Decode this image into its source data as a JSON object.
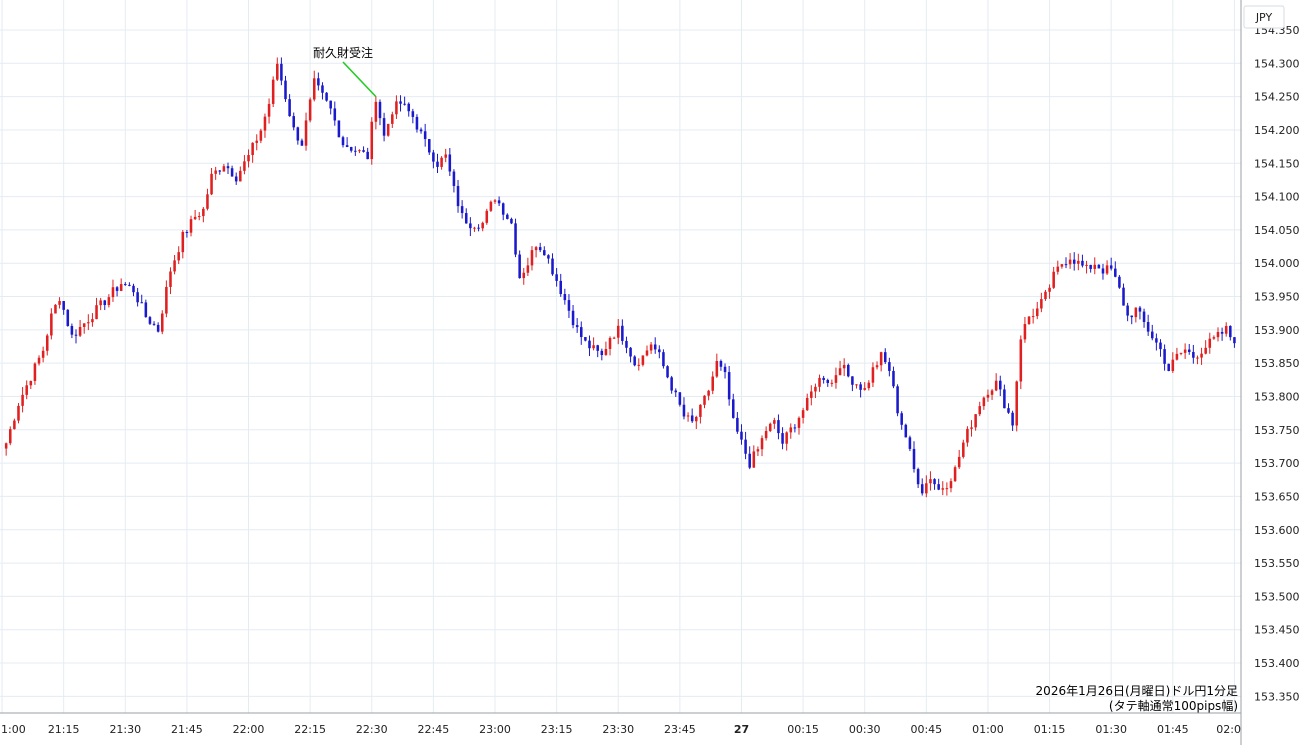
{
  "chart_data": {
    "type": "candlestick",
    "currency_label": "JPY",
    "caption_lines": [
      "2026年1月26日(月曜日)ドル円1分足",
      "(タテ軸通常100pips幅)"
    ],
    "annotation": {
      "text": "耐久財受注",
      "price": 154.25
    },
    "colors": {
      "up": "#e02020",
      "down": "#1a1acc",
      "grid": "#e4ecf3",
      "annotation_line": "#22cc22"
    },
    "ylim": [
      153.325,
      154.395
    ],
    "y_ticks": [
      154.35,
      154.3,
      154.25,
      154.2,
      154.15,
      154.1,
      154.05,
      154.0,
      153.95,
      153.9,
      153.85,
      153.8,
      153.75,
      153.7,
      153.65,
      153.6,
      153.55,
      153.5,
      153.45,
      153.4,
      153.35
    ],
    "y_tick_labels": [
      "154.350",
      "154.300",
      "154.250",
      "154.200",
      "154.150",
      "154.100",
      "154.050",
      "154.000",
      "153.950",
      "153.900",
      "153.850",
      "153.800",
      "153.750",
      "153.700",
      "153.650",
      "153.600",
      "153.550",
      "153.500",
      "153.450",
      "153.400",
      "153.350"
    ],
    "x_ticks": [
      {
        "label": "1:00",
        "minute": -1
      },
      {
        "label": "21:15",
        "minute": 14
      },
      {
        "label": "21:30",
        "minute": 29
      },
      {
        "label": "21:45",
        "minute": 44
      },
      {
        "label": "22:00",
        "minute": 59
      },
      {
        "label": "22:15",
        "minute": 74
      },
      {
        "label": "22:30",
        "minute": 89
      },
      {
        "label": "22:45",
        "minute": 104
      },
      {
        "label": "23:00",
        "minute": 119
      },
      {
        "label": "23:15",
        "minute": 134
      },
      {
        "label": "23:30",
        "minute": 149
      },
      {
        "label": "23:45",
        "minute": 164
      },
      {
        "label": "27",
        "minute": 179,
        "bold": true
      },
      {
        "label": "00:15",
        "minute": 194
      },
      {
        "label": "00:30",
        "minute": 209
      },
      {
        "label": "00:45",
        "minute": 224
      },
      {
        "label": "01:00",
        "minute": 239
      },
      {
        "label": "01:15",
        "minute": 254
      },
      {
        "label": "01:30",
        "minute": 269
      },
      {
        "label": "01:45",
        "minute": 284
      },
      {
        "label": "02:0",
        "minute": 299
      }
    ],
    "x_range_minutes": [
      -1.5,
      300.6
    ],
    "annotation_minute": 90,
    "path": [
      [
        0,
        153.73
      ],
      [
        3,
        153.79
      ],
      [
        6,
        153.83
      ],
      [
        9,
        153.87
      ],
      [
        11,
        153.92
      ],
      [
        13,
        153.95
      ],
      [
        16,
        153.89
      ],
      [
        19,
        153.91
      ],
      [
        22,
        153.93
      ],
      [
        25,
        153.95
      ],
      [
        28,
        153.97
      ],
      [
        31,
        153.96
      ],
      [
        34,
        153.92
      ],
      [
        37,
        153.9
      ],
      [
        38,
        153.93
      ],
      [
        40,
        153.99
      ],
      [
        43,
        154.04
      ],
      [
        46,
        154.07
      ],
      [
        48,
        154.08
      ],
      [
        50,
        154.13
      ],
      [
        53,
        154.15
      ],
      [
        56,
        154.13
      ],
      [
        59,
        154.16
      ],
      [
        62,
        154.2
      ],
      [
        64,
        154.24
      ],
      [
        66,
        154.3
      ],
      [
        68,
        154.25
      ],
      [
        70,
        154.2
      ],
      [
        72,
        154.18
      ],
      [
        75,
        154.27
      ],
      [
        77,
        154.25
      ],
      [
        79,
        154.23
      ],
      [
        82,
        154.18
      ],
      [
        85,
        154.17
      ],
      [
        88,
        154.16
      ],
      [
        90,
        154.25
      ],
      [
        92,
        154.19
      ],
      [
        94,
        154.23
      ],
      [
        96,
        154.24
      ],
      [
        99,
        154.22
      ],
      [
        102,
        154.18
      ],
      [
        105,
        154.15
      ],
      [
        107,
        154.16
      ],
      [
        109,
        154.11
      ],
      [
        111,
        154.07
      ],
      [
        113,
        154.06
      ],
      [
        116,
        154.06
      ],
      [
        119,
        154.1
      ],
      [
        121,
        154.08
      ],
      [
        123,
        154.06
      ],
      [
        125,
        153.98
      ],
      [
        127,
        154.0
      ],
      [
        129,
        154.03
      ],
      [
        131,
        154.02
      ],
      [
        133,
        153.99
      ],
      [
        135,
        153.96
      ],
      [
        137,
        153.93
      ],
      [
        139,
        153.9
      ],
      [
        141,
        153.88
      ],
      [
        143,
        153.87
      ],
      [
        145,
        153.86
      ],
      [
        147,
        153.89
      ],
      [
        149,
        153.9
      ],
      [
        151,
        153.88
      ],
      [
        153,
        153.85
      ],
      [
        155,
        153.86
      ],
      [
        157,
        153.88
      ],
      [
        159,
        153.86
      ],
      [
        161,
        153.83
      ],
      [
        163,
        153.8
      ],
      [
        165,
        153.77
      ],
      [
        167,
        153.76
      ],
      [
        169,
        153.78
      ],
      [
        171,
        153.81
      ],
      [
        173,
        153.85
      ],
      [
        175,
        153.83
      ],
      [
        177,
        153.76
      ],
      [
        179,
        153.73
      ],
      [
        181,
        153.7
      ],
      [
        183,
        153.72
      ],
      [
        185,
        153.75
      ],
      [
        187,
        153.76
      ],
      [
        189,
        153.73
      ],
      [
        191,
        153.75
      ],
      [
        193,
        153.77
      ],
      [
        195,
        153.79
      ],
      [
        197,
        153.82
      ],
      [
        199,
        153.83
      ],
      [
        201,
        153.82
      ],
      [
        203,
        153.85
      ],
      [
        205,
        153.83
      ],
      [
        207,
        153.82
      ],
      [
        209,
        153.81
      ],
      [
        211,
        153.84
      ],
      [
        213,
        153.86
      ],
      [
        215,
        153.84
      ],
      [
        217,
        153.78
      ],
      [
        219,
        153.74
      ],
      [
        221,
        153.69
      ],
      [
        223,
        153.66
      ],
      [
        225,
        153.68
      ],
      [
        227,
        153.66
      ],
      [
        229,
        153.67
      ],
      [
        231,
        153.69
      ],
      [
        233,
        153.73
      ],
      [
        235,
        153.76
      ],
      [
        237,
        153.79
      ],
      [
        239,
        153.81
      ],
      [
        241,
        153.82
      ],
      [
        243,
        153.79
      ],
      [
        245,
        153.76
      ],
      [
        247,
        153.89
      ],
      [
        249,
        153.92
      ],
      [
        251,
        153.93
      ],
      [
        253,
        153.95
      ],
      [
        255,
        153.98
      ],
      [
        257,
        154.0
      ],
      [
        259,
        154.01
      ],
      [
        261,
        154.0
      ],
      [
        263,
        153.99
      ],
      [
        265,
        154.0
      ],
      [
        267,
        153.99
      ],
      [
        269,
        153.99
      ],
      [
        271,
        153.96
      ],
      [
        273,
        153.92
      ],
      [
        275,
        153.93
      ],
      [
        277,
        153.91
      ],
      [
        279,
        153.89
      ],
      [
        281,
        153.87
      ],
      [
        283,
        153.84
      ],
      [
        285,
        153.86
      ],
      [
        287,
        153.87
      ],
      [
        289,
        153.86
      ],
      [
        291,
        153.87
      ],
      [
        293,
        153.88
      ],
      [
        295,
        153.89
      ],
      [
        297,
        153.9
      ],
      [
        299,
        153.88
      ]
    ]
  }
}
